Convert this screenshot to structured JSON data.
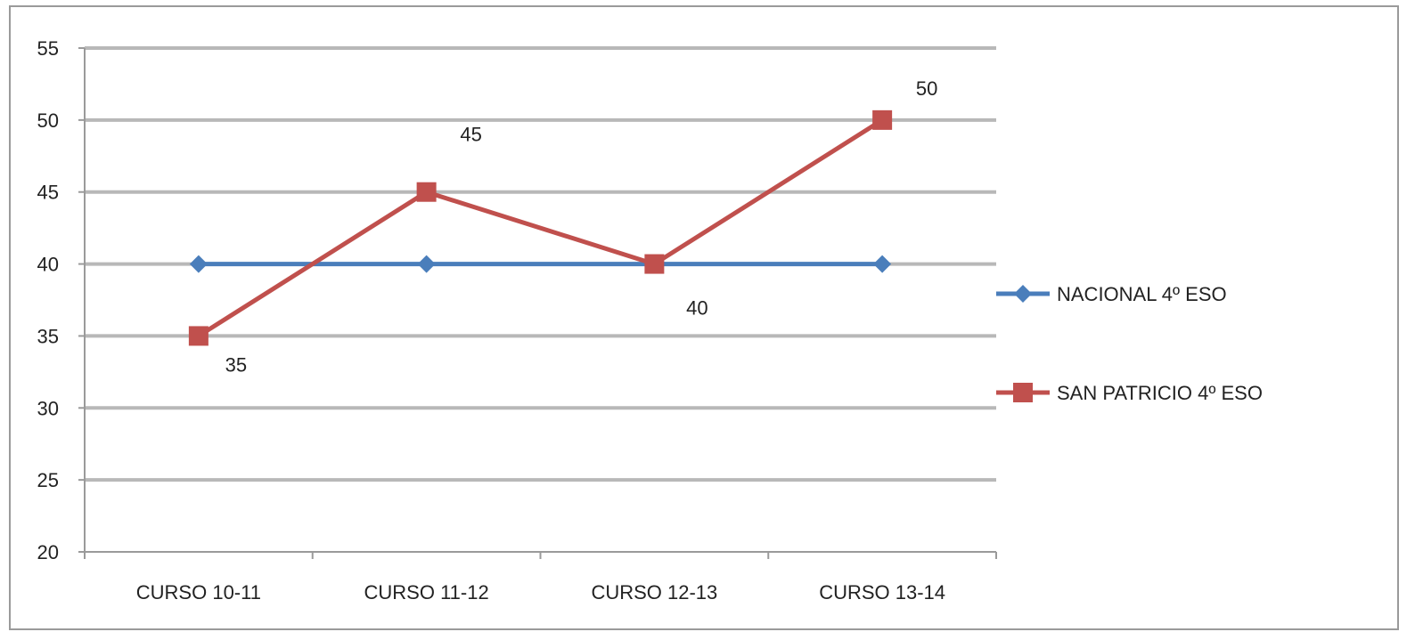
{
  "chart_data": {
    "type": "line",
    "categories": [
      "CURSO 10-11",
      "CURSO 11-12",
      "CURSO 12-13",
      "CURSO 13-14"
    ],
    "series": [
      {
        "name": "NACIONAL 4º ESO",
        "values": [
          40,
          40,
          40,
          40
        ],
        "color": "#4a7ebb",
        "marker": "diamond",
        "data_labels": null
      },
      {
        "name": "SAN PATRICIO 4º ESO",
        "values": [
          35,
          45,
          40,
          50
        ],
        "color": "#c0504d",
        "marker": "square",
        "data_labels": [
          "35",
          "45",
          "40",
          "50"
        ]
      }
    ],
    "ylim": [
      20,
      55
    ],
    "yticks": [
      20,
      25,
      30,
      35,
      40,
      45,
      50,
      55
    ],
    "ytick_labels": [
      "20",
      "25",
      "30",
      "35",
      "40",
      "45",
      "50",
      "55"
    ],
    "grid": true,
    "legend_position": "right"
  }
}
